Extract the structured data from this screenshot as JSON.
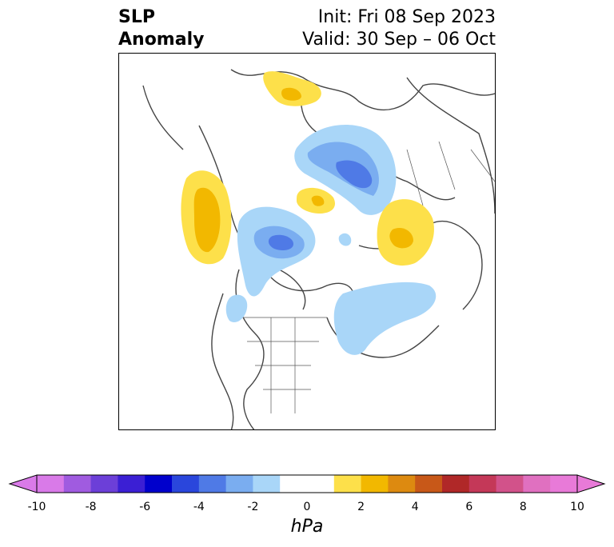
{
  "title": {
    "left_line1": "SLP",
    "left_line2": "Anomaly",
    "right_line1": "Init: Fri 08 Sep 2023",
    "right_line2": "Valid: 30 Sep – 06 Oct"
  },
  "colorbar": {
    "units": "hPa",
    "ticks": [
      "-10",
      "-8",
      "-6",
      "-4",
      "-2",
      "0",
      "2",
      "4",
      "6",
      "8",
      "10"
    ],
    "colors": [
      "#d97ae8",
      "#a05be0",
      "#6c3fd8",
      "#3b1fd4",
      "#0000cc",
      "#2a46dc",
      "#4f7ae6",
      "#7aadf0",
      "#a9d6f8",
      "#ffffff",
      "#ffffff",
      "#fde04a",
      "#f2b800",
      "#dd8a10",
      "#c85818",
      "#b02828",
      "#c43858",
      "#d2528a",
      "#e070c0",
      "#e87ad8"
    ]
  },
  "map": {
    "features": [
      {
        "name": "anomaly-positive-gulf-of-alaska",
        "sign": "positive",
        "peak_hpa": 3
      },
      {
        "name": "anomaly-positive-scandinavia",
        "sign": "positive",
        "peak_hpa": 2
      },
      {
        "name": "anomaly-positive-kara-sea",
        "sign": "positive",
        "peak_hpa": 2
      },
      {
        "name": "anomaly-positive-hudson-bay-north",
        "sign": "positive",
        "peak_hpa": 2
      },
      {
        "name": "anomaly-negative-western-siberia",
        "sign": "negative",
        "peak_hpa": -4
      },
      {
        "name": "anomaly-negative-canadian-arctic",
        "sign": "negative",
        "peak_hpa": -4
      },
      {
        "name": "anomaly-negative-north-atlantic",
        "sign": "negative",
        "peak_hpa": -2
      },
      {
        "name": "anomaly-negative-pacific-northwest",
        "sign": "negative",
        "peak_hpa": -2
      }
    ]
  }
}
